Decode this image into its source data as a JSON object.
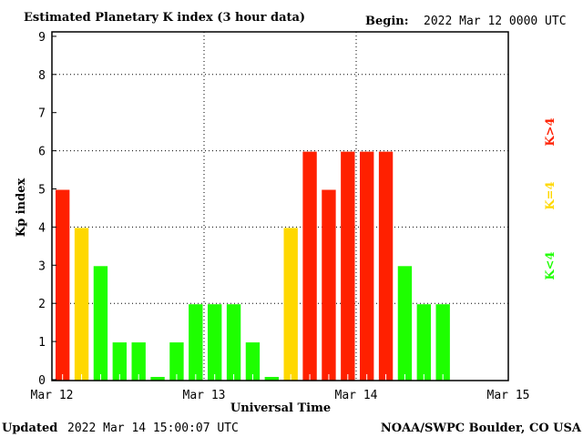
{
  "chart_data": {
    "type": "bar",
    "title": "Estimated Planetary K index (3 hour data)",
    "begin_label": "Begin:",
    "begin_value": "2022 Mar 12 0000 UTC",
    "xlabel": "Universal Time",
    "ylabel": "Kp index",
    "ylim": [
      0,
      9
    ],
    "yticks": [
      "0",
      "1",
      "2",
      "3",
      "4",
      "5",
      "6",
      "7",
      "8",
      "9"
    ],
    "xticks": [
      "Mar 12",
      "Mar 13",
      "Mar 14",
      "Mar 15"
    ],
    "grid": true,
    "bars_per_day": 8,
    "values": [
      5,
      4,
      3,
      1,
      1,
      0,
      1,
      2,
      2,
      2,
      1,
      0,
      4,
      6,
      5,
      6,
      6,
      6,
      3,
      2,
      2
    ],
    "legend": [
      {
        "label": "K>4",
        "color": "#ff2000"
      },
      {
        "label": "K=4",
        "color": "#ffd800"
      },
      {
        "label": "K<4",
        "color": "#1eff00"
      }
    ],
    "legend_placement": "right"
  },
  "footer": {
    "updated_label": "Updated",
    "updated_value": "2022 Mar 14 15:00:07 UTC",
    "source": "NOAA/SWPC Boulder, CO USA"
  }
}
